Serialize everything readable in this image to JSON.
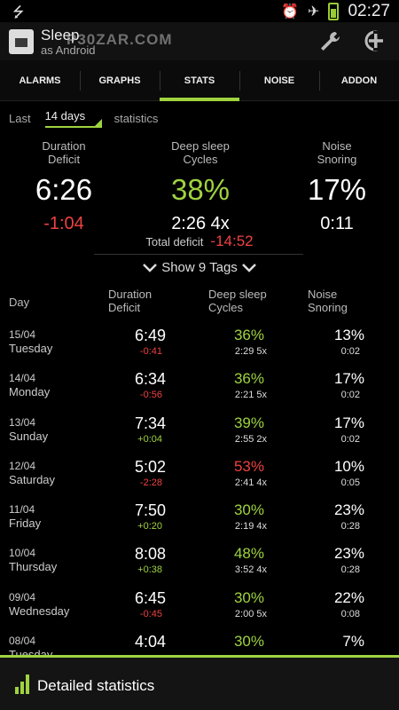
{
  "status_bar": {
    "time": "02:27",
    "icons": [
      "usb-icon",
      "alarm-clock-icon",
      "airplane-icon",
      "battery-icon"
    ]
  },
  "app_bar": {
    "title": "Sleep",
    "subtitle": "as Android",
    "watermark": "P30ZAR.COM"
  },
  "tabs": [
    {
      "label": "ALARMS",
      "active": false
    },
    {
      "label": "GRAPHS",
      "active": false
    },
    {
      "label": "STATS",
      "active": true
    },
    {
      "label": "NOISE",
      "active": false
    },
    {
      "label": "ADDON",
      "active": false
    }
  ],
  "filter": {
    "prefix": "Last",
    "period": "14 days",
    "suffix": "statistics"
  },
  "summary": {
    "duration": {
      "label": "Duration\nDeficit",
      "value": "6:26",
      "sub": "-1:04"
    },
    "deep": {
      "label": "Deep sleep\nCycles",
      "value": "38%",
      "sub": "2:26 4x"
    },
    "noise": {
      "label": "Noise\nSnoring",
      "value": "17%",
      "sub": "0:11"
    },
    "total_deficit_label": "Total deficit",
    "total_deficit_value": "-14:52"
  },
  "tags_toggle": "Show 9 Tags",
  "table": {
    "headers": {
      "day": "Day",
      "duration": "Duration\nDeficit",
      "deep": "Deep sleep\nCycles",
      "noise": "Noise\nSnoring"
    },
    "rows": [
      {
        "date": "15/04",
        "dow": "Tuesday",
        "duration": "6:49",
        "deficit": "-0:41",
        "deep": "36%",
        "cycles": "2:29 5x",
        "noise": "13%",
        "snoring": "0:02"
      },
      {
        "date": "14/04",
        "dow": "Monday",
        "duration": "6:34",
        "deficit": "-0:56",
        "deep": "36%",
        "cycles": "2:21 5x",
        "noise": "17%",
        "snoring": "0:02"
      },
      {
        "date": "13/04",
        "dow": "Sunday",
        "duration": "7:34",
        "deficit": "+0:04",
        "deep": "39%",
        "cycles": "2:55 2x",
        "noise": "17%",
        "snoring": "0:02"
      },
      {
        "date": "12/04",
        "dow": "Saturday",
        "duration": "5:02",
        "deficit": "-2:28",
        "deep": "53%",
        "cycles": "2:41 4x",
        "noise": "10%",
        "snoring": "0:05"
      },
      {
        "date": "11/04",
        "dow": "Friday",
        "duration": "7:50",
        "deficit": "+0:20",
        "deep": "30%",
        "cycles": "2:19 4x",
        "noise": "23%",
        "snoring": "0:28"
      },
      {
        "date": "10/04",
        "dow": "Thursday",
        "duration": "8:08",
        "deficit": "+0:38",
        "deep": "48%",
        "cycles": "3:52 4x",
        "noise": "23%",
        "snoring": "0:28"
      },
      {
        "date": "09/04",
        "dow": "Wednesday",
        "duration": "6:45",
        "deficit": "-0:45",
        "deep": "30%",
        "cycles": "2:00 5x",
        "noise": "22%",
        "snoring": "0:08"
      },
      {
        "date": "08/04",
        "dow": "Tuesday",
        "duration": "4:04",
        "deficit": "",
        "deep": "30%",
        "cycles": "",
        "noise": "7%",
        "snoring": ""
      }
    ]
  },
  "bottom_bar": {
    "label": "Detailed statistics"
  },
  "colors": {
    "accent": "#9fd33f",
    "negative": "#ef4141",
    "background": "#000000"
  }
}
